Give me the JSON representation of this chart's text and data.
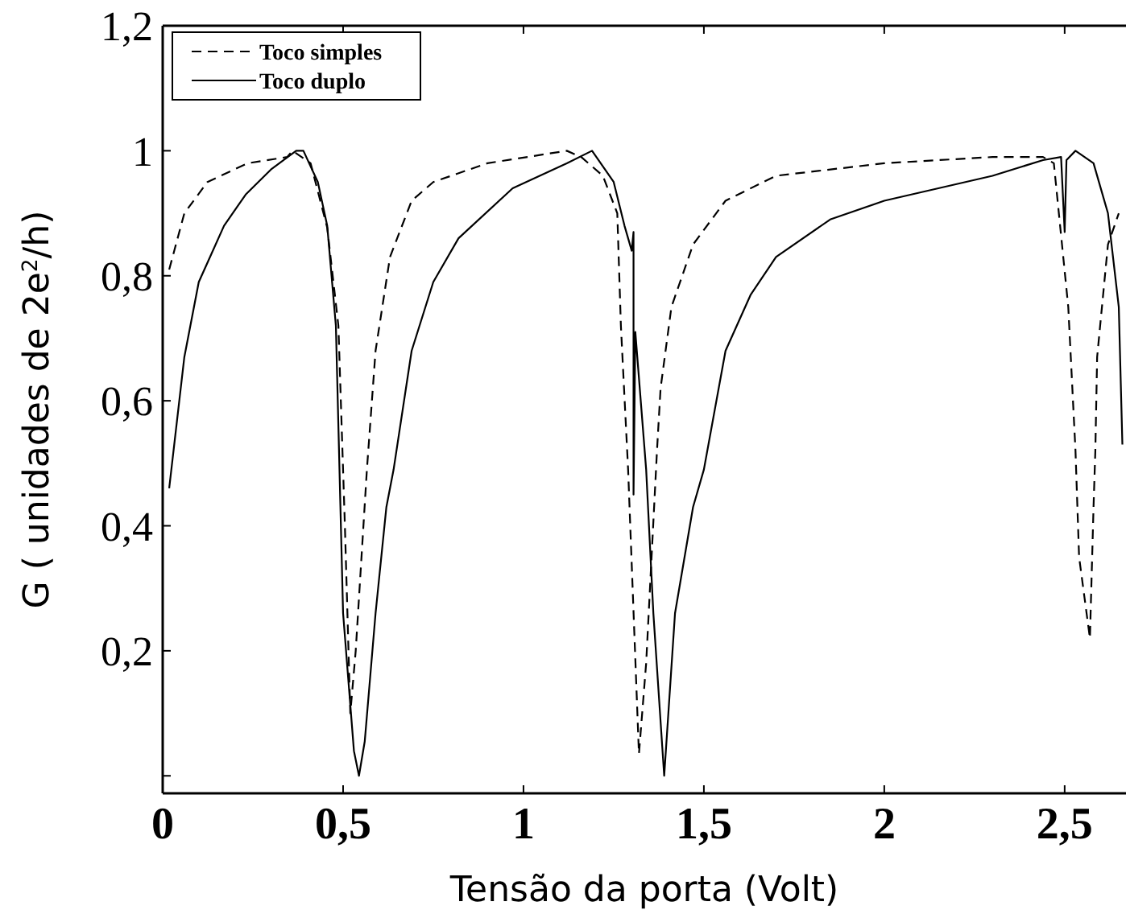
{
  "chart_data": {
    "type": "line",
    "xlabel": "Tensão da porta (Volt)",
    "ylabel": "G ( unidades de 2e$^{2}$/h)",
    "xlim": [
      0,
      2.67
    ],
    "ylim": [
      -0.028,
      1.2
    ],
    "xticks": [
      0,
      {
        "value": 0.5,
        "label": "0,5"
      },
      1,
      {
        "value": 1.5,
        "label": "1,5"
      },
      2,
      {
        "value": 2.5,
        "label": "2,5"
      }
    ],
    "yticks": [
      {
        "value": 0,
        "label": null
      },
      {
        "value": 0.2,
        "label": "0,2"
      },
      {
        "value": 0.4,
        "label": "0,4"
      },
      {
        "value": 0.6,
        "label": "0,6"
      },
      {
        "value": 0.8,
        "label": "0,8"
      },
      1,
      {
        "value": 1.2,
        "label": "1,2"
      }
    ],
    "grid": false,
    "legend": "top left",
    "marker": "none",
    "series": [
      {
        "name": "Toco simples",
        "color": "#000000",
        "line_style": "dashed",
        "x": [
          0.018,
          0.06,
          0.124,
          0.235,
          0.345,
          0.36,
          0.41,
          0.456,
          0.487,
          0.505,
          0.52,
          0.535,
          0.566,
          0.59,
          0.63,
          0.69,
          0.75,
          0.9,
          1.12,
          1.16,
          1.22,
          1.26,
          1.27,
          1.29,
          1.32,
          1.34,
          1.37,
          1.38,
          1.41,
          1.47,
          1.56,
          1.7,
          2.0,
          2.3,
          2.44,
          2.47,
          2.51,
          2.53,
          2.54,
          2.57,
          2.58,
          2.585,
          2.59,
          2.62,
          2.65
        ],
        "values": [
          0.81,
          0.9,
          0.95,
          0.98,
          0.99,
          1.0,
          0.98,
          0.877,
          0.72,
          0.4,
          0.1,
          0.2,
          0.49,
          0.68,
          0.83,
          0.92,
          0.95,
          0.98,
          1.0,
          0.99,
          0.96,
          0.9,
          0.72,
          0.49,
          0.035,
          0.18,
          0.52,
          0.62,
          0.75,
          0.85,
          0.92,
          0.96,
          0.98,
          0.99,
          0.99,
          0.98,
          0.75,
          0.52,
          0.35,
          0.22,
          0.43,
          0.52,
          0.67,
          0.85,
          0.9
        ]
      },
      {
        "name": "Toco duplo",
        "color": "#000000",
        "line_style": "solid",
        "x": [
          0.018,
          0.06,
          0.1,
          0.17,
          0.23,
          0.3,
          0.37,
          0.39,
          0.43,
          0.456,
          0.48,
          0.49,
          0.5,
          0.53,
          0.544,
          0.56,
          0.59,
          0.62,
          0.64,
          0.69,
          0.75,
          0.82,
          0.97,
          1.12,
          1.19,
          1.25,
          1.28,
          1.3,
          1.305,
          1.305,
          1.31,
          1.34,
          1.36,
          1.39,
          1.42,
          1.47,
          1.5,
          1.56,
          1.63,
          1.7,
          1.85,
          2.0,
          2.3,
          2.44,
          2.49,
          2.5,
          2.505,
          2.53,
          2.58,
          2.62,
          2.65,
          2.66
        ],
        "values": [
          0.46,
          0.67,
          0.79,
          0.88,
          0.93,
          0.97,
          1.0,
          1.0,
          0.95,
          0.88,
          0.72,
          0.49,
          0.26,
          0.04,
          0.0,
          0.055,
          0.26,
          0.43,
          0.49,
          0.68,
          0.79,
          0.86,
          0.94,
          0.98,
          1.0,
          0.95,
          0.88,
          0.84,
          0.87,
          0.45,
          0.71,
          0.49,
          0.26,
          0.0,
          0.26,
          0.43,
          0.49,
          0.68,
          0.77,
          0.83,
          0.89,
          0.92,
          0.96,
          0.985,
          0.99,
          0.87,
          0.985,
          1.0,
          0.98,
          0.9,
          0.75,
          0.53
        ]
      }
    ]
  }
}
